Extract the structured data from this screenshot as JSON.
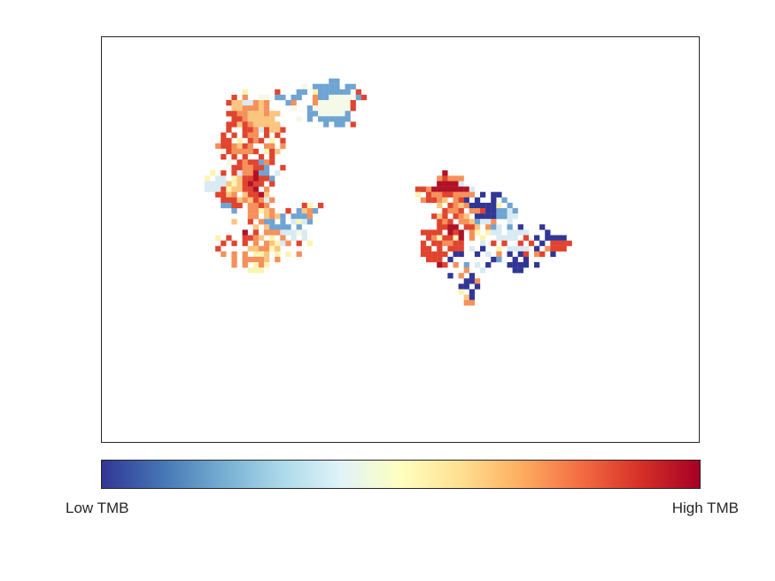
{
  "chart_data": {
    "type": "heatmap",
    "title": "",
    "xlabel": "",
    "ylabel": "",
    "axes_ticks": "none",
    "colormap": "RdYlBu (reversed)",
    "colorbar": {
      "orientation": "horizontal",
      "placement": "bottom",
      "low_label": "Low TMB",
      "high_label": "High TMB",
      "stops": [
        "#313695",
        "#4575b4",
        "#74add1",
        "#abd9e9",
        "#e0f3f8",
        "#ffffbf",
        "#fee090",
        "#fdae61",
        "#f46d43",
        "#d73027",
        "#a50026"
      ]
    },
    "palette_key": {
      "1": "#313695",
      "2": "#6fa4d2",
      "3": "#d9eaf3",
      "4": "#f4f9e8",
      "5": "#fdf4b0",
      "6": "#fbc57f",
      "7": "#f6905a",
      "8": "#e0442f",
      "9": "#b01228"
    },
    "grid_rows": [
      "................................................................................................",
      "................................................................................................",
      "...............................................................................................",
      ".............................................................................................",
      "........................................................................................",
      ".....................................................................................................",
      "..........................................22.............................................",
      ".....................................4.22222.22..........................................",
      "..........................5.....8...22.5222222.8.........................................",
      "........................8.7..44.22.22..7224444428........................................",
      ".......................86633767...27...74444448..........................................",
      "........................6677767....4..244444448..........................................",
      ".......................8877666766.....22444442...........................................",
      "........................88766666....4.2.222222...........................................",
      ".......................8868766666........2.22.8..........................................",
      ".......................8..88738668.......................................................",
      "......................8.8.877.8.8........................................................",
      "......................88.5.878.5.8.......................................................",
      ".....................7887687..77.7.......................................................",
      "......................4877778.586........................................................",
      "......................8.8.8..8.8.........................................................",
      ".......................4.8788278.........................................................",
      "........................8877882..8.......................................................",
      "....................5.8.8377922.3..............................9.........................",
      "...................5.33.56889882..............................78777......................",
      "...................33336568988.8..............................99993......................",
      "...................3338566889.7...........................88799999993....................",
      ".....................8867.68896...........................5.877887777.1.11................",
      "......................8886768737...........................78876.781.1..1.2...............",
      "......................2288.7787......85.8.....................6.8767111115.2...............",
      "........................2..77567..8.2672.......................8778.778112232..............",
      "...........................77.6762.2227......................868.876.11112233..............",
      "........................6..8.722.2.3532.......................878.7762337..3...............",
      "............................6.62222.2.........................8899.886.723.2.1...1..........",
      "..........................9.8.77733343.....................8888.989.75.533.3333...1.........",
      ".....................5.8..8876.5.7.3.3......................8758859.7.5..3333.8.1.1111.......",
      "......................8.8.8.7.76537.8.5....................8.887788...3.8.8..8.8.1.8888.......",
      ".....................8.....667756..........................88.8.888.3.1..5.3333.1.7888.......",
      "......................7.7.7.556.5.5.7......................88888.11..1.3.7.1.18.78.1..........",
      "........................7.77776.7...........................888.1.......12..1.1...............",
      "........................7.7.575...............................98.7.2.3.1...1111.1.............",
      "...........................555.....................................7..3.....11.................",
      "................................................................1.7.1............................",
      "...................................................................117.........................",
      "..................................................................11.1...........................",
      "..................................................................5.1............................",
      "...................................................................61............................",
      "...................................................................77............................"
    ]
  }
}
